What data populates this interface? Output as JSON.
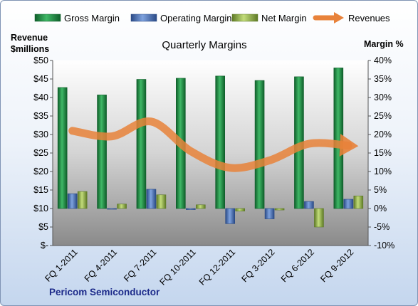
{
  "chart_data": {
    "type": "bar",
    "title": "Quarterly Margins",
    "categories": [
      "FQ 1-2011",
      "FQ 4-2011",
      "FQ 7-2011",
      "FQ 10-2011",
      "FQ 12-2011",
      "FQ 3-2012",
      "FQ 6-2012",
      "FQ 9-2012"
    ],
    "series": [
      {
        "name": "Gross Margin",
        "axis": "right",
        "values": [
          32.7,
          30.7,
          34.9,
          35.2,
          35.8,
          34.6,
          35.6,
          38.0
        ]
      },
      {
        "name": "Operating Margin",
        "axis": "right",
        "values": [
          4.0,
          -0.2,
          5.2,
          -0.3,
          -4.1,
          -2.8,
          1.9,
          2.5
        ]
      },
      {
        "name": "Net Margin",
        "axis": "right",
        "values": [
          4.6,
          1.2,
          3.7,
          1.0,
          -0.7,
          -0.4,
          -5.0,
          3.4
        ]
      },
      {
        "name": "Revenues",
        "axis": "left",
        "type": "line",
        "values": [
          31,
          29.5,
          33.5,
          25.5,
          21,
          23,
          27.5,
          27
        ]
      }
    ],
    "left_axis": {
      "label_line1": "Revenue",
      "label_line2": "$millions",
      "min": 0,
      "max": 50,
      "step": 5,
      "ticks": [
        "$-",
        "$5",
        "$10",
        "$15",
        "$20",
        "$25",
        "$30",
        "$35",
        "$40",
        "$45",
        "$50"
      ]
    },
    "right_axis": {
      "label": "Margin %",
      "min": -10,
      "max": 40,
      "step": 5,
      "ticks": [
        "-10%",
        "-5%",
        "0%",
        "5%",
        "10%",
        "15%",
        "20%",
        "25%",
        "30%",
        "35%",
        "40%"
      ]
    },
    "legend_position": "top",
    "grid": false,
    "colors": {
      "Gross Margin": "#1f8a44",
      "Operating Margin": "#4a72b8",
      "Net Margin": "#8fb04a",
      "Revenues": "#e8823a"
    }
  },
  "footer": {
    "company": "Pericom Semiconductor"
  }
}
